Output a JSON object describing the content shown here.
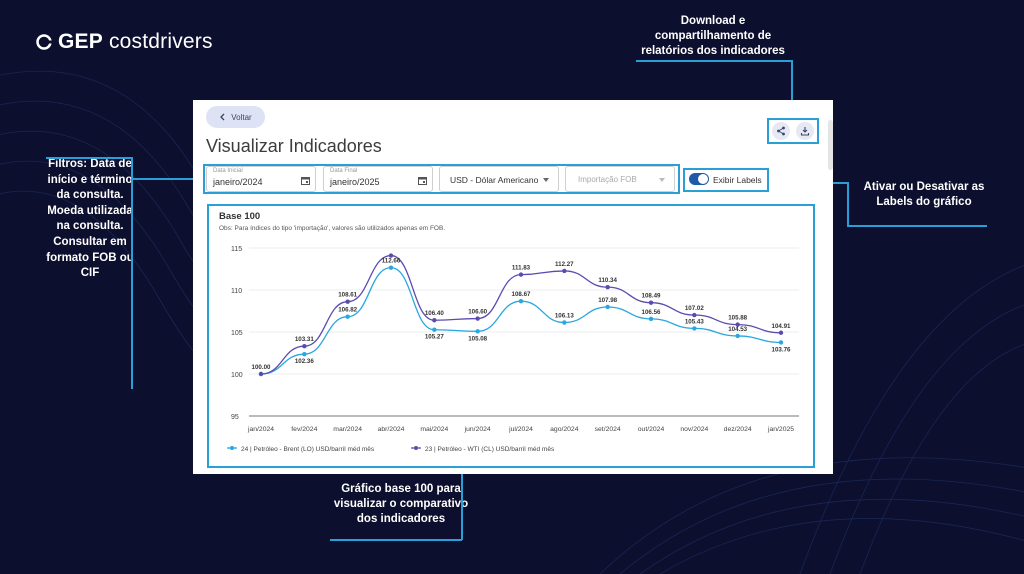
{
  "logo": {
    "brand": "GEP",
    "product": "costdrivers"
  },
  "callouts": {
    "download": "Download e compartilhamento de relatórios dos indicadores",
    "filtros": "Filtros: Data de início e término da consulta. Moeda utilizada na consulta. Consultar em formato FOB ou CIF",
    "labels": "Ativar ou Desativar as Labels do gráfico",
    "grafico": "Gráfico base 100 para visualizar o comparativo dos indicadores"
  },
  "app": {
    "back_label": "Voltar",
    "title": "Visualizar Indicadores",
    "filters": {
      "start_label": "Data Inicial",
      "start_value": "janeiro/2024",
      "end_label": "Data Final",
      "end_value": "janeiro/2025",
      "currency_value": "USD - Dólar Americano",
      "incoterm_value": "Importação FOB"
    },
    "toggle_label": "Exibir Labels",
    "toggle_on": true
  },
  "colors": {
    "accent": "#2a9fd6",
    "series_brent": "#2aa6e0",
    "series_wti": "#5b4bb0",
    "background": "#0d0f2e"
  },
  "chart_data": {
    "type": "line",
    "title": "Base 100",
    "note": "Obs: Para índices do tipo 'importação', valores são utilizados apenas em FOB.",
    "categories": [
      "jan/2024",
      "fev/2024",
      "mar/2024",
      "abr/2024",
      "mai/2024",
      "jun/2024",
      "jul/2024",
      "ago/2024",
      "set/2024",
      "out/2024",
      "nov/2024",
      "dez/2024",
      "jan/2025"
    ],
    "ylim": [
      95,
      115
    ],
    "yticks": [
      95,
      100,
      105,
      110,
      115
    ],
    "grid": true,
    "legend_position": "bottom-left",
    "series": [
      {
        "name": "24 | Petróleo - Brent (LO) USD/barril méd mês",
        "values": [
          100.0,
          102.36,
          106.82,
          112.66,
          105.27,
          105.08,
          108.67,
          106.13,
          107.98,
          106.56,
          105.43,
          104.53,
          103.76
        ]
      },
      {
        "name": "23 | Petróleo - WTI (CL) USD/barril méd mês",
        "values": [
          100.0,
          103.31,
          108.61,
          114.1,
          106.4,
          106.6,
          111.83,
          112.27,
          110.34,
          108.49,
          107.02,
          105.88,
          104.91
        ]
      }
    ],
    "data_labels": [
      {
        "series": 0,
        "index": 0,
        "text": "100.00"
      },
      {
        "series": 0,
        "index": 1,
        "text": "102.36"
      },
      {
        "series": 0,
        "index": 2,
        "text": "106.82"
      },
      {
        "series": 0,
        "index": 3,
        "text": "112.66"
      },
      {
        "series": 0,
        "index": 4,
        "text": "105.27"
      },
      {
        "series": 0,
        "index": 5,
        "text": "105.08"
      },
      {
        "series": 0,
        "index": 6,
        "text": "108.67"
      },
      {
        "series": 0,
        "index": 7,
        "text": "106.13"
      },
      {
        "series": 0,
        "index": 8,
        "text": "107.98"
      },
      {
        "series": 0,
        "index": 9,
        "text": "106.56"
      },
      {
        "series": 0,
        "index": 10,
        "text": "105.43"
      },
      {
        "series": 0,
        "index": 11,
        "text": "104.53"
      },
      {
        "series": 0,
        "index": 12,
        "text": "103.76"
      },
      {
        "series": 1,
        "index": 1,
        "text": "103.31"
      },
      {
        "series": 1,
        "index": 2,
        "text": "108.61"
      },
      {
        "series": 1,
        "index": 4,
        "text": "106.40"
      },
      {
        "series": 1,
        "index": 5,
        "text": "106.60"
      },
      {
        "series": 1,
        "index": 6,
        "text": "111.83"
      },
      {
        "series": 1,
        "index": 7,
        "text": "112.27"
      },
      {
        "series": 1,
        "index": 8,
        "text": "110.34"
      },
      {
        "series": 1,
        "index": 9,
        "text": "108.49"
      },
      {
        "series": 1,
        "index": 10,
        "text": "107.02"
      },
      {
        "series": 1,
        "index": 11,
        "text": "105.88"
      },
      {
        "series": 1,
        "index": 12,
        "text": "104.91"
      }
    ]
  }
}
